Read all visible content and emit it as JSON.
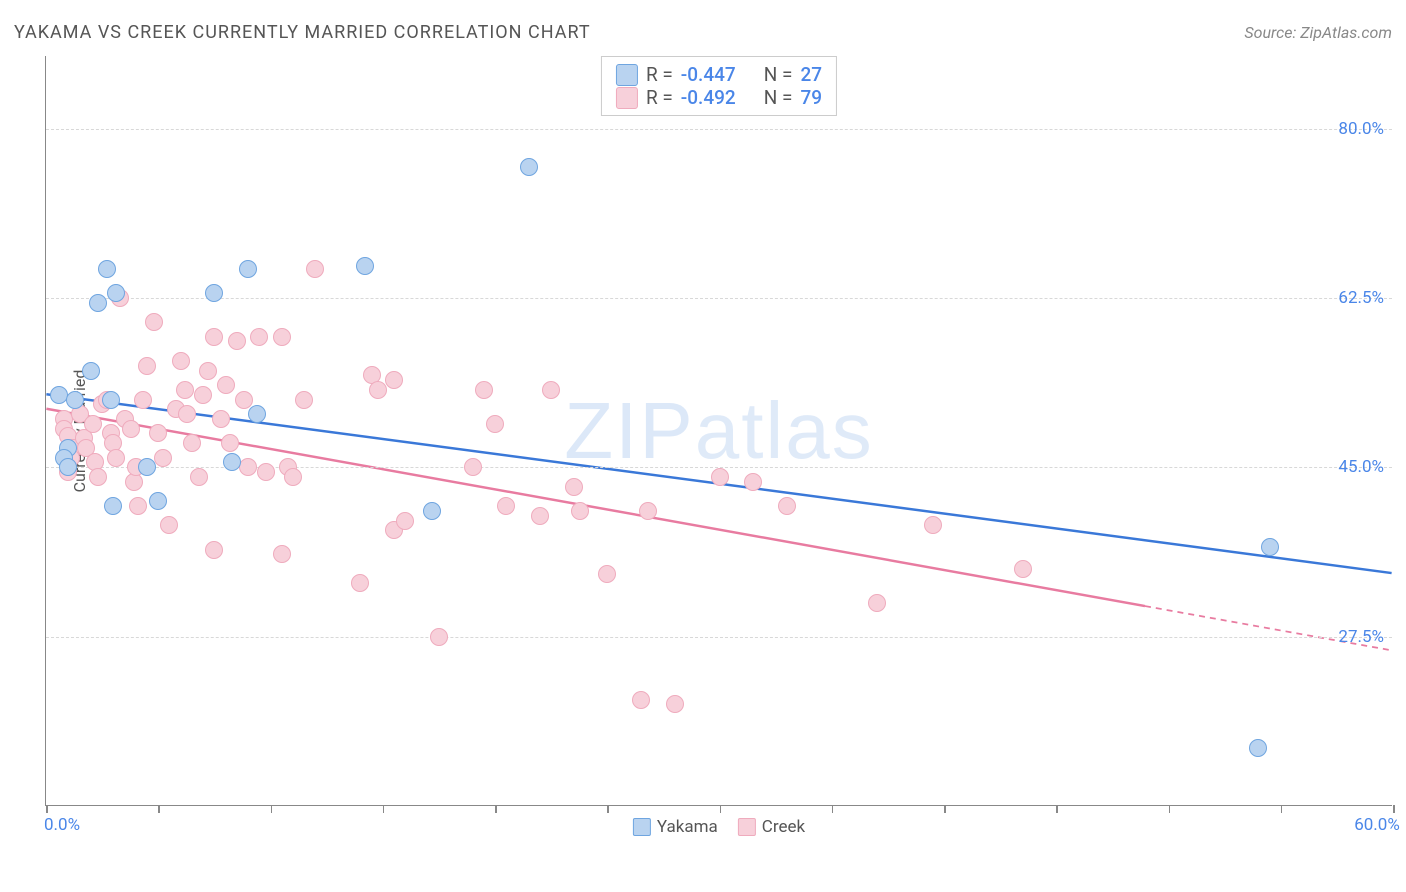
{
  "title": "YAKAMA VS CREEK CURRENTLY MARRIED CORRELATION CHART",
  "source": "Source: ZipAtlas.com",
  "watermark": "ZIPatlas",
  "y_axis_label": "Currently Married",
  "chart": {
    "type": "scatter",
    "background_color": "#ffffff",
    "grid_color": "#d8d8d8",
    "title_color": "#555555",
    "title_fontsize": 18,
    "axis_label_color": "#555555",
    "tick_label_color": "#4a86e8",
    "tick_label_fontsize": 17,
    "xlim": [
      0,
      60
    ],
    "ylim": [
      10,
      87.5
    ],
    "x_ticks": [
      0,
      5,
      10,
      15,
      20,
      25,
      30,
      35,
      40,
      45,
      50,
      55,
      60
    ],
    "x_tick_labels": {
      "0": "0.0%",
      "60": "60.0%"
    },
    "y_gridlines": [
      27.5,
      45.0,
      62.5,
      80.0
    ],
    "y_tick_labels": {
      "27.5": "27.5%",
      "45.0": "45.0%",
      "62.5": "62.5%",
      "80.0": "80.0%"
    },
    "marker_radius": 9,
    "marker_border_width": 1.5
  },
  "series": [
    {
      "name": "Yakama",
      "fill_color": "#b9d3f0",
      "border_color": "#6fa5e0",
      "R": "-0.447",
      "N": "27",
      "trend": {
        "x1": 0,
        "y1": 52.5,
        "x2": 60,
        "y2": 34.0,
        "color": "#3a78d8",
        "width": 2.5,
        "dash_from_x": null
      },
      "points": [
        [
          2.7,
          65.5
        ],
        [
          9.0,
          65.5
        ],
        [
          7.5,
          63.0
        ],
        [
          14.2,
          65.8
        ],
        [
          2.3,
          62.0
        ],
        [
          2.0,
          55.0
        ],
        [
          0.6,
          52.5
        ],
        [
          1.3,
          52.0
        ],
        [
          2.9,
          52.0
        ],
        [
          1.0,
          47.0
        ],
        [
          0.8,
          46.0
        ],
        [
          1.0,
          45.0
        ],
        [
          4.5,
          45.0
        ],
        [
          3.0,
          41.0
        ],
        [
          5.0,
          41.5
        ],
        [
          8.3,
          45.5
        ],
        [
          9.4,
          50.5
        ],
        [
          3.1,
          63.0
        ],
        [
          21.5,
          76.0
        ],
        [
          17.2,
          40.5
        ],
        [
          54.5,
          36.8
        ],
        [
          54.0,
          16.0
        ]
      ]
    },
    {
      "name": "Creek",
      "fill_color": "#f7d0da",
      "border_color": "#efabbd",
      "R": "-0.492",
      "N": "79",
      "trend": {
        "x1": 0,
        "y1": 51.0,
        "x2": 60,
        "y2": 26.0,
        "color": "#e87ba0",
        "width": 2.5,
        "dash_from_x": 49
      },
      "points": [
        [
          0.8,
          50.0
        ],
        [
          0.8,
          49.0
        ],
        [
          1.0,
          48.2
        ],
        [
          1.2,
          47.0
        ],
        [
          1.1,
          46.0
        ],
        [
          1.0,
          44.5
        ],
        [
          1.5,
          50.5
        ],
        [
          1.7,
          48.0
        ],
        [
          1.8,
          47.0
        ],
        [
          2.1,
          49.5
        ],
        [
          2.2,
          45.5
        ],
        [
          2.3,
          44.0
        ],
        [
          2.5,
          51.5
        ],
        [
          2.7,
          52.0
        ],
        [
          2.9,
          48.5
        ],
        [
          3.0,
          47.5
        ],
        [
          3.1,
          46.0
        ],
        [
          3.3,
          62.5
        ],
        [
          3.5,
          50.0
        ],
        [
          3.8,
          49.0
        ],
        [
          3.9,
          43.5
        ],
        [
          4.0,
          45.0
        ],
        [
          4.1,
          41.0
        ],
        [
          4.3,
          52.0
        ],
        [
          4.5,
          55.5
        ],
        [
          4.8,
          60.0
        ],
        [
          5.0,
          48.5
        ],
        [
          5.2,
          46.0
        ],
        [
          5.5,
          39.0
        ],
        [
          5.8,
          51.0
        ],
        [
          6.0,
          56.0
        ],
        [
          6.2,
          53.0
        ],
        [
          6.3,
          50.5
        ],
        [
          6.5,
          47.5
        ],
        [
          6.8,
          44.0
        ],
        [
          7.0,
          52.5
        ],
        [
          7.2,
          55.0
        ],
        [
          7.5,
          58.5
        ],
        [
          7.8,
          50.0
        ],
        [
          7.5,
          36.5
        ],
        [
          8.0,
          53.5
        ],
        [
          8.2,
          47.5
        ],
        [
          8.5,
          58.0
        ],
        [
          8.8,
          52.0
        ],
        [
          9.0,
          45.0
        ],
        [
          9.5,
          58.5
        ],
        [
          9.8,
          44.5
        ],
        [
          10.5,
          58.5
        ],
        [
          10.5,
          36.0
        ],
        [
          10.8,
          45.0
        ],
        [
          11.0,
          44.0
        ],
        [
          11.5,
          52.0
        ],
        [
          12.0,
          65.5
        ],
        [
          14.5,
          54.5
        ],
        [
          14.8,
          53.0
        ],
        [
          14.0,
          33.0
        ],
        [
          15.5,
          54.0
        ],
        [
          15.5,
          38.5
        ],
        [
          16.0,
          39.5
        ],
        [
          17.5,
          27.5
        ],
        [
          19.5,
          53.0
        ],
        [
          20.0,
          49.5
        ],
        [
          19.0,
          45.0
        ],
        [
          20.5,
          41.0
        ],
        [
          22.0,
          40.0
        ],
        [
          22.5,
          53.0
        ],
        [
          23.5,
          43.0
        ],
        [
          23.8,
          40.5
        ],
        [
          25.0,
          34.0
        ],
        [
          26.5,
          21.0
        ],
        [
          28.0,
          20.5
        ],
        [
          26.8,
          40.5
        ],
        [
          30.0,
          44.0
        ],
        [
          31.5,
          43.5
        ],
        [
          33.0,
          41.0
        ],
        [
          37.0,
          31.0
        ],
        [
          39.5,
          39.0
        ],
        [
          43.5,
          34.5
        ]
      ]
    }
  ],
  "legend_top": {
    "R_label": "R =",
    "N_label": "N ="
  },
  "legend_bottom": {
    "items": [
      "Yakama",
      "Creek"
    ]
  }
}
